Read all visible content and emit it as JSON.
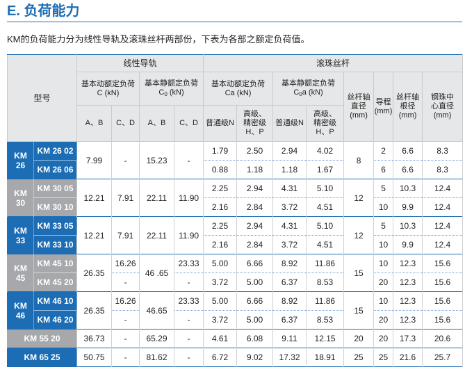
{
  "title": "E. 负荷能力",
  "intro": "KM的负荷能力分为线性导轨及滚珠丝杆两部份，下表为各部之额定负荷值。",
  "colors": {
    "accent": "#1c6db4",
    "gray": "#a6a8ab",
    "header_bg": "#e6e7e8",
    "separator": "#6a9fd4"
  },
  "header": {
    "model": "型号",
    "linear_guide": "线性导轨",
    "ball_screw": "滚珠丝杆",
    "guide_dynamic": {
      "label": "基本动额定负荷",
      "unit": "C (kN)"
    },
    "guide_static": {
      "label": "基本静额定负荷",
      "sym": "C",
      "sub": "0",
      "unit": " (kN)"
    },
    "screw_dynamic": {
      "label": "基本动额定负荷",
      "unit": "Ca (kN)"
    },
    "screw_static": {
      "label": "基本静额定负荷",
      "sym": "C",
      "sub": "0",
      "unit": "a (kN)"
    },
    "screw_diameter": "丝杆轴\n直径\n(mm)",
    "lead": "导程\n(mm)",
    "root_diameter": "丝杆轴\n根径\n(mm)",
    "ball_center_diameter": "钢珠中\n心直径\n(mm)",
    "ab": "A、B",
    "cd": "C、D",
    "normal": "普通级N",
    "high_precision": "高级、\n精密级\nH、P"
  },
  "groups": [
    {
      "label": "KM\n26",
      "theme": "blue",
      "models": [
        "KM 26 02",
        "KM 26 06"
      ],
      "values": {
        "guide_dynamic_ab": "7.99",
        "guide_dynamic_cd": "-",
        "guide_static_ab": "15.23",
        "guide_static_cd": "-",
        "screw_dynamic_n": [
          "1.79",
          "0.88"
        ],
        "screw_dynamic_hp": [
          "2.50",
          "1.18"
        ],
        "screw_static_n": [
          "2.94",
          "1.18"
        ],
        "screw_static_hp": [
          "4.02",
          "1.67"
        ],
        "screw_diameter": "8",
        "lead": [
          "2",
          "6"
        ],
        "root_diameter": [
          "6.6",
          "6.6"
        ],
        "ball_center_diameter": [
          "8.3",
          "8.3"
        ]
      }
    },
    {
      "label": "KM\n30",
      "theme": "gray",
      "models": [
        "KM 30 05",
        "KM 30 10"
      ],
      "values": {
        "guide_dynamic_ab": "12.21",
        "guide_dynamic_cd": "7.91",
        "guide_static_ab": "22.11",
        "guide_static_cd": "11.90",
        "screw_dynamic_n": [
          "2.25",
          "2.16"
        ],
        "screw_dynamic_hp": [
          "2.94",
          "2.84"
        ],
        "screw_static_n": [
          "4.31",
          "3.72"
        ],
        "screw_static_hp": [
          "5.10",
          "4.51"
        ],
        "screw_diameter": "12",
        "lead": [
          "5",
          "10"
        ],
        "root_diameter": [
          "10.3",
          "9.9"
        ],
        "ball_center_diameter": [
          "12.4",
          "12.4"
        ]
      }
    },
    {
      "label": "KM\n33",
      "theme": "blue",
      "models": [
        "KM 33 05",
        "KM 33 10"
      ],
      "values": {
        "guide_dynamic_ab": "12.21",
        "guide_dynamic_cd": "7.91",
        "guide_static_ab": "22.11",
        "guide_static_cd": "11.90",
        "screw_dynamic_n": [
          "2.25",
          "2.16"
        ],
        "screw_dynamic_hp": [
          "2.94",
          "2.84"
        ],
        "screw_static_n": [
          "4.31",
          "3.72"
        ],
        "screw_static_hp": [
          "5.10",
          "4.51"
        ],
        "screw_diameter": "12",
        "lead": [
          "5",
          "10"
        ],
        "root_diameter": [
          "10.3",
          "9.9"
        ],
        "ball_center_diameter": [
          "12.4",
          "12.4"
        ]
      }
    },
    {
      "label": "KM\n45",
      "theme": "gray",
      "models": [
        "KM 45 10",
        "KM 45 20"
      ],
      "values": {
        "guide_dynamic_ab": "26.35",
        "guide_dynamic_cd": [
          "16.26",
          "-"
        ],
        "guide_static_ab": "46 .65",
        "guide_static_cd": [
          "23.33",
          "-"
        ],
        "screw_dynamic_n": [
          "5.00",
          "3.72"
        ],
        "screw_dynamic_hp": [
          "6.66",
          "5.00"
        ],
        "screw_static_n": [
          "8.92",
          "6.37"
        ],
        "screw_static_hp": [
          "11.86",
          "8.53"
        ],
        "screw_diameter": "15",
        "lead": [
          "10",
          "20"
        ],
        "root_diameter": [
          "12.3",
          "12.3"
        ],
        "ball_center_diameter": [
          "15.6",
          "15.6"
        ]
      }
    },
    {
      "label": "KM\n46",
      "theme": "blue",
      "models": [
        "KM 46 10",
        "KM 46 20"
      ],
      "values": {
        "guide_dynamic_ab": "26.35",
        "guide_dynamic_cd": [
          "16.26",
          "-"
        ],
        "guide_static_ab": "46.65",
        "guide_static_cd": [
          "23.33",
          "-"
        ],
        "screw_dynamic_n": [
          "5.00",
          "3.72"
        ],
        "screw_dynamic_hp": [
          "6.66",
          "5.00"
        ],
        "screw_static_n": [
          "8.92",
          "6.37"
        ],
        "screw_static_hp": [
          "11.86",
          "8.53"
        ],
        "screw_diameter": "15",
        "lead": [
          "10",
          "20"
        ],
        "root_diameter": [
          "12.3",
          "12.3"
        ],
        "ball_center_diameter": [
          "15.6",
          "15.6"
        ]
      }
    },
    {
      "theme": "gray",
      "models": [
        "KM 55 20"
      ],
      "values": {
        "guide_dynamic_ab": "36.73",
        "guide_dynamic_cd": "-",
        "guide_static_ab": "65.29",
        "guide_static_cd": "-",
        "screw_dynamic_n": "4.61",
        "screw_dynamic_hp": "6.08",
        "screw_static_n": "9.11",
        "screw_static_hp": "12.15",
        "screw_diameter": "20",
        "lead": "20",
        "root_diameter": "17.3",
        "ball_center_diameter": "20.6"
      }
    },
    {
      "theme": "blue",
      "models": [
        "KM 65 25"
      ],
      "values": {
        "guide_dynamic_ab": "50.75",
        "guide_dynamic_cd": "-",
        "guide_static_ab": "81.62",
        "guide_static_cd": "-",
        "screw_dynamic_n": "6.72",
        "screw_dynamic_hp": "9.02",
        "screw_static_n": "17.32",
        "screw_static_hp": "18.91",
        "screw_diameter": "25",
        "lead": "25",
        "root_diameter": "21.6",
        "ball_center_diameter": "25.7"
      }
    }
  ]
}
